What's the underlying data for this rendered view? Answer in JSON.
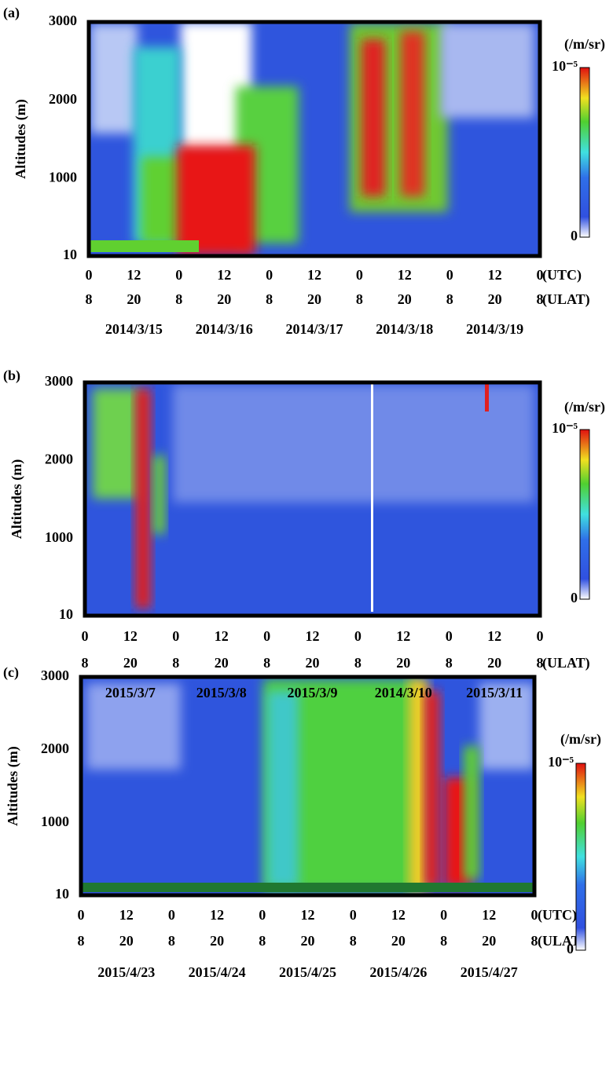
{
  "chart_data": [
    {
      "type": "heatmap",
      "panel": "(a)",
      "y_label": "Altitudes (m)",
      "ylim": [
        10,
        3000
      ],
      "yticks": [
        10,
        1000,
        2000,
        3000
      ],
      "xlim": [
        0,
        120
      ],
      "xticks": [
        {
          "value": 0,
          "label": "0"
        },
        {
          "value": 12,
          "label": "12"
        },
        {
          "value": 24,
          "label": "0"
        },
        {
          "value": 36,
          "label": "12"
        },
        {
          "value": 48,
          "label": "0"
        },
        {
          "value": 60,
          "label": "12"
        },
        {
          "value": 72,
          "label": "0"
        },
        {
          "value": 84,
          "label": "12"
        },
        {
          "value": 96,
          "label": "0"
        },
        {
          "value": 108,
          "label": "12"
        },
        {
          "value": 120,
          "label": "0"
        }
      ],
      "x_unit": "(UTC)",
      "x2ticks": [
        {
          "value": 0,
          "label": "8"
        },
        {
          "value": 12,
          "label": "20"
        },
        {
          "value": 24,
          "label": "8"
        },
        {
          "value": 36,
          "label": "20"
        },
        {
          "value": 48,
          "label": "8"
        },
        {
          "value": 60,
          "label": "20"
        },
        {
          "value": 72,
          "label": "8"
        },
        {
          "value": 84,
          "label": "20"
        },
        {
          "value": 96,
          "label": "8"
        },
        {
          "value": 108,
          "label": "20"
        },
        {
          "value": 120,
          "label": "8"
        }
      ],
      "x2_unit": "(ULAT)",
      "categories": [
        "2014/3/15",
        "2014/3/16",
        "2014/3/17",
        "2014/3/18",
        "2014/3/19"
      ],
      "colorbar_label": "(/m/sr)",
      "clim": [
        0,
        1e-05
      ],
      "cticks": [
        {
          "value": 1e-05,
          "label": "10⁻⁵"
        },
        0
      ]
    },
    {
      "type": "heatmap",
      "panel": "(b)",
      "y_label": "Altitudes (m)",
      "ylim": [
        10,
        3000
      ],
      "yticks": [
        10,
        1000,
        2000,
        3000
      ],
      "xlim": [
        0,
        120
      ],
      "xticks": [
        {
          "value": 0,
          "label": "0"
        },
        {
          "value": 12,
          "label": "12"
        },
        {
          "value": 24,
          "label": "0"
        },
        {
          "value": 36,
          "label": "12"
        },
        {
          "value": 48,
          "label": "0"
        },
        {
          "value": 60,
          "label": "12"
        },
        {
          "value": 72,
          "label": "0"
        },
        {
          "value": 84,
          "label": "12"
        },
        {
          "value": 96,
          "label": "0"
        },
        {
          "value": 108,
          "label": "12"
        },
        {
          "value": 120,
          "label": "0"
        }
      ],
      "x2ticks": [
        {
          "value": 0,
          "label": "8"
        },
        {
          "value": 12,
          "label": "20"
        },
        {
          "value": 24,
          "label": "8"
        },
        {
          "value": 36,
          "label": "20"
        },
        {
          "value": 48,
          "label": "8"
        },
        {
          "value": 60,
          "label": "20"
        },
        {
          "value": 72,
          "label": "8"
        },
        {
          "value": 84,
          "label": "20"
        },
        {
          "value": 96,
          "label": "8"
        },
        {
          "value": 108,
          "label": "20"
        },
        {
          "value": 120,
          "label": "8"
        }
      ],
      "x2_unit": "(ULAT)",
      "categories": [
        "2015/3/7",
        "2015/3/8",
        "2015/3/9",
        "2014/3/10",
        "2015/3/11"
      ],
      "colorbar_label": "(/m/sr)",
      "clim": [
        0,
        1e-05
      ],
      "cticks": [
        {
          "value": 1e-05,
          "label": "10⁻⁵"
        },
        0
      ]
    },
    {
      "type": "heatmap",
      "panel": "(c)",
      "y_label": "Altitudes (m)",
      "ylim": [
        10,
        3000
      ],
      "yticks": [
        10,
        1000,
        2000,
        3000
      ],
      "xlim": [
        0,
        120
      ],
      "xticks": [
        {
          "value": 0,
          "label": "0"
        },
        {
          "value": 12,
          "label": "12"
        },
        {
          "value": 24,
          "label": "0"
        },
        {
          "value": 36,
          "label": "12"
        },
        {
          "value": 48,
          "label": "0"
        },
        {
          "value": 60,
          "label": "12"
        },
        {
          "value": 72,
          "label": "0"
        },
        {
          "value": 84,
          "label": "12"
        },
        {
          "value": 96,
          "label": "0"
        },
        {
          "value": 108,
          "label": "12"
        },
        {
          "value": 120,
          "label": "0"
        }
      ],
      "x_unit": "(UTC)",
      "x2ticks": [
        {
          "value": 0,
          "label": "8"
        },
        {
          "value": 12,
          "label": "20"
        },
        {
          "value": 24,
          "label": "8"
        },
        {
          "value": 36,
          "label": "20"
        },
        {
          "value": 48,
          "label": "8"
        },
        {
          "value": 60,
          "label": "20"
        },
        {
          "value": 72,
          "label": "8"
        },
        {
          "value": 84,
          "label": "20"
        },
        {
          "value": 96,
          "label": "8"
        },
        {
          "value": 108,
          "label": "20"
        },
        {
          "value": 120,
          "label": "8"
        }
      ],
      "x2_unit": "(ULAT)",
      "categories": [
        "2015/4/23",
        "2015/4/24",
        "2015/4/25",
        "2015/4/26",
        "2015/4/27"
      ],
      "colorbar_label": "(/m/sr)",
      "clim": [
        0,
        1e-05
      ],
      "cticks": [
        {
          "value": 1e-05,
          "label": "10⁻⁵"
        },
        0
      ]
    }
  ]
}
